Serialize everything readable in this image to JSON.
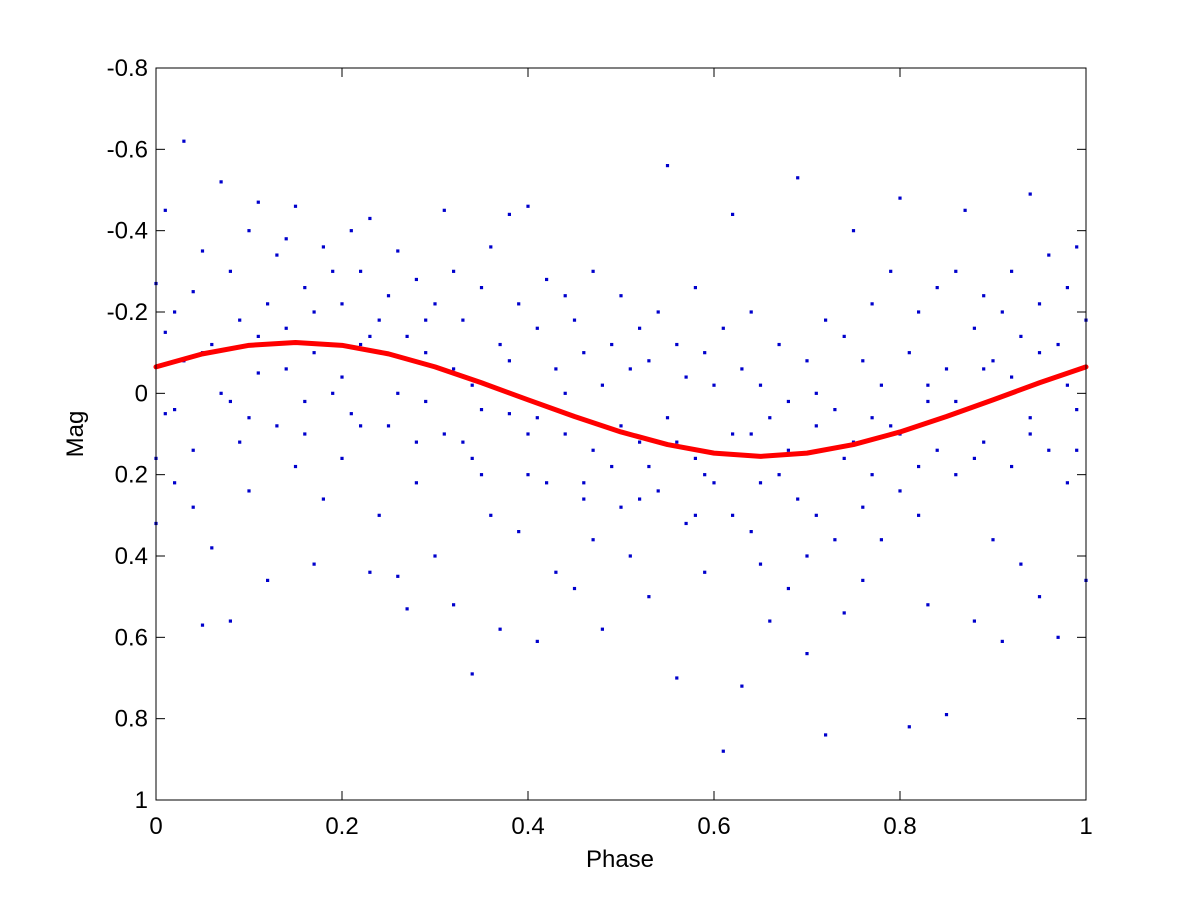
{
  "chart_data": {
    "type": "scatter",
    "title": "",
    "xlabel": "Phase",
    "ylabel": "Mag",
    "xlim": [
      0,
      1
    ],
    "ylim": [
      -0.8,
      1
    ],
    "y_axis_reversed": true,
    "grid": false,
    "legend": "none",
    "x_ticks": [
      0,
      0.2,
      0.4,
      0.6,
      0.8,
      1
    ],
    "x_tick_labels": [
      "0",
      "0.2",
      "0.4",
      "0.6",
      "0.8",
      "1"
    ],
    "y_ticks": [
      -0.8,
      -0.6,
      -0.4,
      -0.2,
      0,
      0.2,
      0.4,
      0.6,
      0.8,
      1
    ],
    "y_tick_labels": [
      "-0.8",
      "-0.6",
      "-0.4",
      "-0.2",
      "0",
      "0.2",
      "0.4",
      "0.6",
      "0.8",
      "1"
    ],
    "series": [
      {
        "kind": "scatter",
        "color": "#0000cc",
        "marker": "dot",
        "points": [
          [
            0.0,
            -0.27
          ],
          [
            0.0,
            0.16
          ],
          [
            0.0,
            0.32
          ],
          [
            0.01,
            -0.45
          ],
          [
            0.01,
            -0.15
          ],
          [
            0.01,
            0.05
          ],
          [
            0.02,
            -0.2
          ],
          [
            0.02,
            0.22
          ],
          [
            0.03,
            -0.62
          ],
          [
            0.03,
            -0.08
          ],
          [
            0.04,
            -0.25
          ],
          [
            0.04,
            0.28
          ],
          [
            0.05,
            -0.35
          ],
          [
            0.05,
            0.57
          ],
          [
            0.06,
            -0.12
          ],
          [
            0.06,
            0.38
          ],
          [
            0.07,
            -0.52
          ],
          [
            0.07,
            0.0
          ],
          [
            0.08,
            -0.3
          ],
          [
            0.08,
            0.56
          ],
          [
            0.09,
            -0.18
          ],
          [
            0.09,
            0.12
          ],
          [
            0.1,
            -0.4
          ],
          [
            0.1,
            0.24
          ],
          [
            0.11,
            -0.47
          ],
          [
            0.11,
            -0.05
          ],
          [
            0.12,
            -0.22
          ],
          [
            0.12,
            0.46
          ],
          [
            0.13,
            -0.34
          ],
          [
            0.13,
            0.08
          ],
          [
            0.14,
            -0.16
          ],
          [
            0.14,
            -0.38
          ],
          [
            0.15,
            -0.46
          ],
          [
            0.15,
            0.18
          ],
          [
            0.16,
            -0.26
          ],
          [
            0.16,
            0.02
          ],
          [
            0.17,
            -0.1
          ],
          [
            0.17,
            0.42
          ],
          [
            0.18,
            -0.36
          ],
          [
            0.18,
            0.26
          ],
          [
            0.19,
            -0.3
          ],
          [
            0.19,
            0.0
          ],
          [
            0.2,
            -0.22
          ],
          [
            0.2,
            0.16
          ],
          [
            0.21,
            -0.4
          ],
          [
            0.21,
            0.05
          ],
          [
            0.22,
            -0.3
          ],
          [
            0.22,
            -0.12
          ],
          [
            0.23,
            -0.43
          ],
          [
            0.23,
            0.44
          ],
          [
            0.24,
            -0.18
          ],
          [
            0.24,
            0.3
          ],
          [
            0.25,
            -0.24
          ],
          [
            0.25,
            0.08
          ],
          [
            0.26,
            -0.35
          ],
          [
            0.26,
            0.45
          ],
          [
            0.27,
            -0.14
          ],
          [
            0.27,
            0.53
          ],
          [
            0.28,
            -0.28
          ],
          [
            0.28,
            0.22
          ],
          [
            0.29,
            -0.1
          ],
          [
            0.29,
            0.02
          ],
          [
            0.3,
            -0.22
          ],
          [
            0.3,
            0.4
          ],
          [
            0.31,
            -0.45
          ],
          [
            0.31,
            0.1
          ],
          [
            0.32,
            -0.3
          ],
          [
            0.32,
            0.52
          ],
          [
            0.33,
            -0.18
          ],
          [
            0.33,
            0.12
          ],
          [
            0.34,
            -0.02
          ],
          [
            0.34,
            0.69
          ],
          [
            0.35,
            -0.26
          ],
          [
            0.35,
            0.2
          ],
          [
            0.36,
            -0.36
          ],
          [
            0.36,
            0.3
          ],
          [
            0.37,
            -0.12
          ],
          [
            0.37,
            0.58
          ],
          [
            0.38,
            -0.44
          ],
          [
            0.38,
            0.05
          ],
          [
            0.39,
            -0.22
          ],
          [
            0.39,
            0.34
          ],
          [
            0.4,
            -0.46
          ],
          [
            0.4,
            0.1
          ],
          [
            0.41,
            -0.16
          ],
          [
            0.41,
            0.61
          ],
          [
            0.42,
            -0.28
          ],
          [
            0.42,
            0.22
          ],
          [
            0.43,
            -0.06
          ],
          [
            0.43,
            0.44
          ],
          [
            0.44,
            -0.24
          ],
          [
            0.44,
            0.0
          ],
          [
            0.45,
            -0.18
          ],
          [
            0.45,
            0.48
          ],
          [
            0.46,
            -0.1
          ],
          [
            0.46,
            0.26
          ],
          [
            0.47,
            -0.3
          ],
          [
            0.47,
            0.36
          ],
          [
            0.48,
            -0.02
          ],
          [
            0.48,
            0.58
          ],
          [
            0.49,
            -0.12
          ],
          [
            0.49,
            0.18
          ],
          [
            0.5,
            -0.24
          ],
          [
            0.5,
            0.28
          ],
          [
            0.51,
            -0.06
          ],
          [
            0.51,
            0.4
          ],
          [
            0.52,
            -0.16
          ],
          [
            0.52,
            0.12
          ],
          [
            0.53,
            -0.08
          ],
          [
            0.53,
            0.5
          ],
          [
            0.54,
            -0.2
          ],
          [
            0.54,
            0.24
          ],
          [
            0.55,
            -0.56
          ],
          [
            0.55,
            0.06
          ],
          [
            0.56,
            -0.12
          ],
          [
            0.56,
            0.7
          ],
          [
            0.57,
            -0.04
          ],
          [
            0.57,
            0.32
          ],
          [
            0.58,
            -0.26
          ],
          [
            0.58,
            0.16
          ],
          [
            0.59,
            -0.1
          ],
          [
            0.59,
            0.44
          ],
          [
            0.6,
            -0.02
          ],
          [
            0.6,
            0.22
          ],
          [
            0.61,
            -0.16
          ],
          [
            0.61,
            0.88
          ],
          [
            0.62,
            -0.44
          ],
          [
            0.62,
            0.3
          ],
          [
            0.63,
            -0.06
          ],
          [
            0.63,
            0.72
          ],
          [
            0.64,
            -0.2
          ],
          [
            0.64,
            0.1
          ],
          [
            0.65,
            -0.02
          ],
          [
            0.65,
            0.42
          ],
          [
            0.66,
            0.06
          ],
          [
            0.66,
            0.56
          ],
          [
            0.67,
            -0.12
          ],
          [
            0.67,
            0.2
          ],
          [
            0.68,
            0.02
          ],
          [
            0.68,
            0.48
          ],
          [
            0.69,
            -0.53
          ],
          [
            0.69,
            0.26
          ],
          [
            0.7,
            -0.08
          ],
          [
            0.7,
            0.64
          ],
          [
            0.71,
            0.0
          ],
          [
            0.71,
            0.3
          ],
          [
            0.72,
            -0.18
          ],
          [
            0.72,
            0.84
          ],
          [
            0.73,
            0.04
          ],
          [
            0.73,
            0.36
          ],
          [
            0.74,
            -0.14
          ],
          [
            0.74,
            0.54
          ],
          [
            0.75,
            -0.4
          ],
          [
            0.75,
            0.12
          ],
          [
            0.76,
            -0.08
          ],
          [
            0.76,
            0.46
          ],
          [
            0.77,
            -0.22
          ],
          [
            0.77,
            0.2
          ],
          [
            0.78,
            -0.02
          ],
          [
            0.78,
            0.36
          ],
          [
            0.79,
            -0.3
          ],
          [
            0.79,
            0.08
          ],
          [
            0.8,
            -0.48
          ],
          [
            0.8,
            0.24
          ],
          [
            0.81,
            -0.1
          ],
          [
            0.81,
            0.82
          ],
          [
            0.82,
            -0.2
          ],
          [
            0.82,
            0.3
          ],
          [
            0.83,
            0.02
          ],
          [
            0.83,
            0.52
          ],
          [
            0.84,
            -0.26
          ],
          [
            0.84,
            0.14
          ],
          [
            0.85,
            -0.06
          ],
          [
            0.85,
            0.79
          ],
          [
            0.86,
            -0.3
          ],
          [
            0.86,
            0.2
          ],
          [
            0.87,
            -0.45
          ],
          [
            0.87,
            0.04
          ],
          [
            0.88,
            -0.16
          ],
          [
            0.88,
            0.56
          ],
          [
            0.89,
            -0.24
          ],
          [
            0.89,
            0.12
          ],
          [
            0.9,
            -0.08
          ],
          [
            0.9,
            0.36
          ],
          [
            0.91,
            -0.2
          ],
          [
            0.91,
            0.61
          ],
          [
            0.92,
            -0.3
          ],
          [
            0.92,
            0.18
          ],
          [
            0.93,
            -0.14
          ],
          [
            0.93,
            0.42
          ],
          [
            0.94,
            -0.49
          ],
          [
            0.94,
            0.06
          ],
          [
            0.95,
            -0.22
          ],
          [
            0.95,
            0.5
          ],
          [
            0.96,
            -0.34
          ],
          [
            0.96,
            0.14
          ],
          [
            0.97,
            -0.12
          ],
          [
            0.97,
            0.6
          ],
          [
            0.98,
            -0.26
          ],
          [
            0.98,
            0.22
          ],
          [
            0.99,
            -0.36
          ],
          [
            0.99,
            0.04
          ],
          [
            1.0,
            -0.18
          ],
          [
            1.0,
            0.46
          ],
          [
            0.02,
            0.04
          ],
          [
            0.05,
            -0.1
          ],
          [
            0.08,
            0.02
          ],
          [
            0.11,
            -0.14
          ],
          [
            0.14,
            -0.06
          ],
          [
            0.17,
            -0.2
          ],
          [
            0.2,
            -0.04
          ],
          [
            0.23,
            -0.14
          ],
          [
            0.26,
            0.0
          ],
          [
            0.29,
            -0.18
          ],
          [
            0.32,
            -0.06
          ],
          [
            0.35,
            0.04
          ],
          [
            0.38,
            -0.08
          ],
          [
            0.41,
            0.06
          ],
          [
            0.44,
            0.1
          ],
          [
            0.47,
            0.14
          ],
          [
            0.5,
            0.08
          ],
          [
            0.53,
            0.18
          ],
          [
            0.56,
            0.12
          ],
          [
            0.59,
            0.2
          ],
          [
            0.62,
            0.1
          ],
          [
            0.65,
            0.22
          ],
          [
            0.68,
            0.14
          ],
          [
            0.71,
            0.08
          ],
          [
            0.74,
            0.16
          ],
          [
            0.77,
            0.06
          ],
          [
            0.8,
            0.1
          ],
          [
            0.83,
            -0.02
          ],
          [
            0.86,
            0.02
          ],
          [
            0.89,
            -0.06
          ],
          [
            0.92,
            -0.04
          ],
          [
            0.95,
            -0.1
          ],
          [
            0.98,
            -0.02
          ],
          [
            0.04,
            0.14
          ],
          [
            0.1,
            0.06
          ],
          [
            0.16,
            0.1
          ],
          [
            0.22,
            0.08
          ],
          [
            0.28,
            0.12
          ],
          [
            0.34,
            0.16
          ],
          [
            0.4,
            0.2
          ],
          [
            0.46,
            0.22
          ],
          [
            0.52,
            0.26
          ],
          [
            0.58,
            0.3
          ],
          [
            0.64,
            0.34
          ],
          [
            0.7,
            0.4
          ],
          [
            0.76,
            0.28
          ],
          [
            0.82,
            0.18
          ],
          [
            0.88,
            0.16
          ],
          [
            0.94,
            0.1
          ],
          [
            0.99,
            0.14
          ]
        ]
      },
      {
        "kind": "line",
        "color": "#ff0000",
        "line_width": "thick",
        "x": [
          0.0,
          0.05,
          0.1,
          0.15,
          0.2,
          0.25,
          0.3,
          0.35,
          0.4,
          0.45,
          0.5,
          0.55,
          0.6,
          0.65,
          0.7,
          0.75,
          0.8,
          0.85,
          0.9,
          0.95,
          1.0
        ],
        "y": [
          -0.065,
          -0.097,
          -0.118,
          -0.125,
          -0.118,
          -0.097,
          -0.065,
          -0.026,
          0.016,
          0.057,
          0.095,
          0.126,
          0.147,
          0.155,
          0.147,
          0.126,
          0.095,
          0.057,
          0.016,
          -0.026,
          -0.065
        ]
      }
    ]
  }
}
